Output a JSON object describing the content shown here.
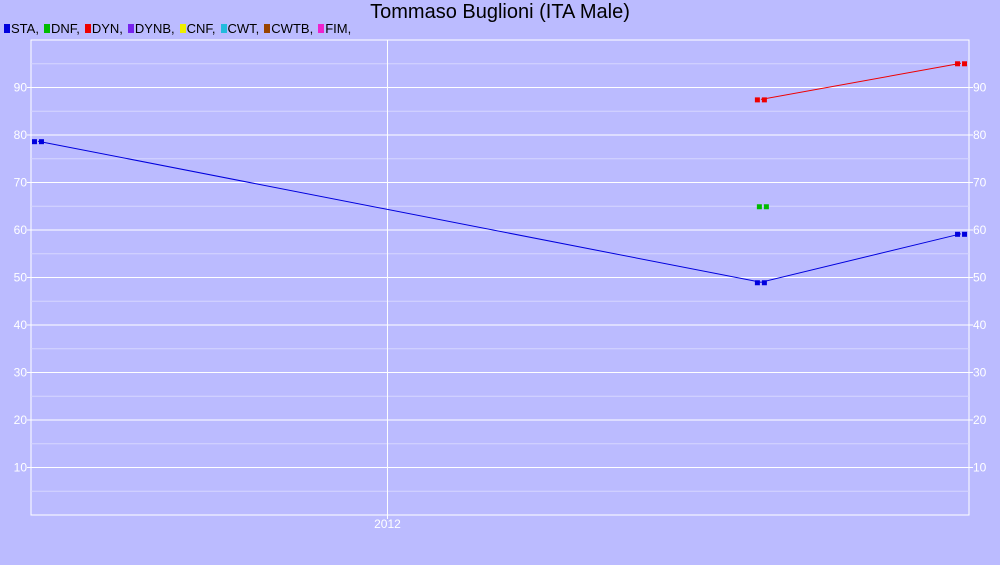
{
  "chart_data": {
    "type": "line",
    "title": "Tommaso Buglioni (ITA Male)",
    "xlabel": "",
    "ylabel": "",
    "x_ticks": [
      "2012"
    ],
    "y_ticks": [
      "10",
      "20",
      "30",
      "40",
      "50",
      "60",
      "70",
      "80",
      "90"
    ],
    "xlim": [
      "2011-01-08",
      "2013-08-07"
    ],
    "ylim": [
      0,
      100
    ],
    "grid": true,
    "legend_position": "top-left",
    "series": [
      {
        "name": "STA",
        "color": "#0000dd",
        "points": [
          {
            "x": "2011-01-15",
            "y": 78.7
          },
          {
            "x": "2013-01-10",
            "y": 49.0
          },
          {
            "x": "2013-07-30",
            "y": 59.2
          }
        ]
      },
      {
        "name": "DNF",
        "color": "#00bb00",
        "points": [
          {
            "x": "2013-01-12",
            "y": 65.0
          }
        ]
      },
      {
        "name": "DYN",
        "color": "#ee0000",
        "points": [
          {
            "x": "2013-01-10",
            "y": 87.5
          },
          {
            "x": "2013-07-30",
            "y": 95.1
          }
        ]
      },
      {
        "name": "DYNB",
        "color": "#7722ee",
        "points": []
      },
      {
        "name": "CNF",
        "color": "#eeee00",
        "points": []
      },
      {
        "name": "CWT",
        "color": "#22bbdd",
        "points": []
      },
      {
        "name": "CWTB",
        "color": "#994400",
        "points": []
      },
      {
        "name": "FIM",
        "color": "#ee22cc",
        "points": []
      }
    ]
  }
}
